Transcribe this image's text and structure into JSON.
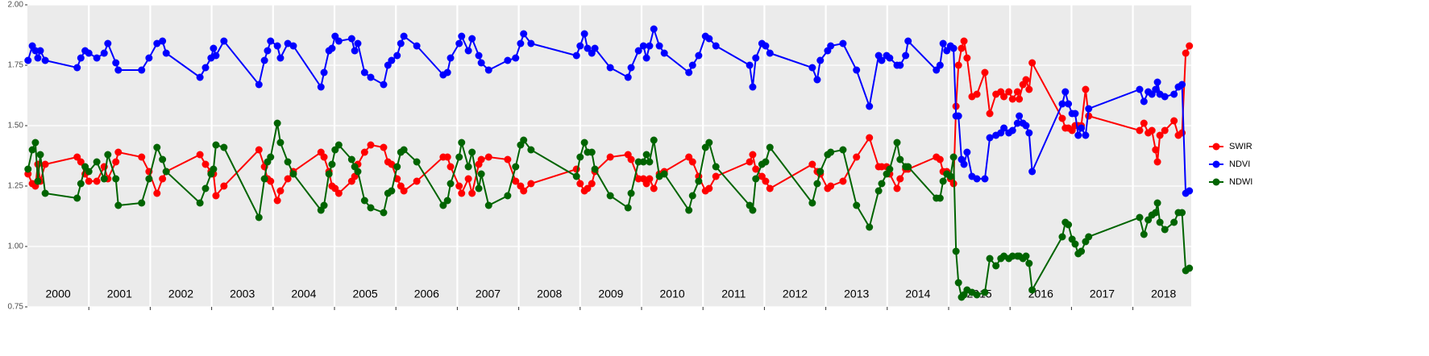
{
  "chart_data": {
    "type": "line",
    "x": [
      2000.01,
      2000.08,
      2000.13,
      2000.17,
      2000.21,
      2000.29,
      2000.81,
      2000.87,
      2000.94,
      2001.0,
      2001.13,
      2001.25,
      2001.31,
      2001.44,
      2001.48,
      2001.86,
      2001.98,
      2002.11,
      2002.2,
      2002.26,
      2002.81,
      2002.9,
      2002.99,
      2003.03,
      2003.07,
      2003.2,
      2003.77,
      2003.86,
      2003.91,
      2003.96,
      2004.07,
      2004.12,
      2004.24,
      2004.33,
      2004.78,
      2004.83,
      2004.91,
      2004.96,
      2005.01,
      2005.07,
      2005.28,
      2005.33,
      2005.38,
      2005.49,
      2005.59,
      2005.8,
      2005.87,
      2005.93,
      2006.02,
      2006.08,
      2006.13,
      2006.34,
      2006.77,
      2006.84,
      2006.89,
      2007.03,
      2007.07,
      2007.18,
      2007.24,
      2007.35,
      2007.39,
      2007.51,
      2007.82,
      2007.95,
      2008.03,
      2008.08,
      2008.2,
      2008.94,
      2009.0,
      2009.07,
      2009.12,
      2009.19,
      2009.24,
      2009.49,
      2009.78,
      2009.83,
      2009.95,
      2010.03,
      2010.08,
      2010.13,
      2010.2,
      2010.29,
      2010.37,
      2010.77,
      2010.83,
      2010.93,
      2011.04,
      2011.1,
      2011.21,
      2011.76,
      2011.81,
      2011.86,
      2011.96,
      2012.02,
      2012.09,
      2012.78,
      2012.86,
      2012.91,
      2013.03,
      2013.08,
      2013.28,
      2013.5,
      2013.71,
      2013.86,
      2013.91,
      2013.99,
      2014.04,
      2014.16,
      2014.21,
      2014.3,
      2014.34,
      2014.8,
      2014.86,
      2014.91,
      2014.97,
      2015.03,
      2015.08,
      2015.12,
      2015.16,
      2015.21,
      2015.25,
      2015.3,
      2015.38,
      2015.46,
      2015.59,
      2015.67,
      2015.77,
      2015.85,
      2015.9,
      2015.98,
      2016.04,
      2016.12,
      2016.15,
      2016.21,
      2016.26,
      2016.31,
      2016.36,
      2016.85,
      2016.9,
      2016.95,
      2017.01,
      2017.06,
      2017.11,
      2017.16,
      2017.23,
      2017.28,
      2018.11,
      2018.18,
      2018.25,
      2018.31,
      2018.37,
      2018.4,
      2018.44,
      2018.52,
      2018.67,
      2018.74,
      2018.8,
      2018.86,
      2018.92
    ],
    "series": [
      {
        "name": "SWIR",
        "color": "#ff0000",
        "values": [
          1.3,
          1.26,
          1.25,
          1.34,
          1.27,
          1.34,
          1.37,
          1.35,
          1.3,
          1.27,
          1.27,
          1.33,
          1.28,
          1.35,
          1.39,
          1.37,
          1.31,
          1.22,
          1.28,
          1.31,
          1.38,
          1.34,
          1.31,
          1.3,
          1.21,
          1.25,
          1.4,
          1.33,
          1.28,
          1.27,
          1.19,
          1.23,
          1.28,
          1.31,
          1.39,
          1.37,
          1.31,
          1.25,
          1.24,
          1.22,
          1.27,
          1.29,
          1.34,
          1.39,
          1.42,
          1.41,
          1.35,
          1.34,
          1.28,
          1.25,
          1.23,
          1.27,
          1.37,
          1.37,
          1.33,
          1.25,
          1.22,
          1.28,
          1.22,
          1.34,
          1.36,
          1.37,
          1.36,
          1.27,
          1.25,
          1.23,
          1.26,
          1.32,
          1.26,
          1.23,
          1.24,
          1.26,
          1.31,
          1.37,
          1.38,
          1.36,
          1.28,
          1.28,
          1.26,
          1.28,
          1.24,
          1.3,
          1.31,
          1.37,
          1.35,
          1.29,
          1.23,
          1.24,
          1.29,
          1.35,
          1.38,
          1.32,
          1.29,
          1.27,
          1.24,
          1.34,
          1.31,
          1.3,
          1.24,
          1.25,
          1.27,
          1.37,
          1.45,
          1.33,
          1.33,
          1.33,
          1.3,
          1.24,
          1.28,
          1.32,
          1.32,
          1.37,
          1.36,
          1.31,
          1.31,
          1.28,
          1.26,
          1.58,
          1.75,
          1.82,
          1.85,
          1.78,
          1.62,
          1.63,
          1.72,
          1.55,
          1.63,
          1.64,
          1.62,
          1.64,
          1.61,
          1.64,
          1.61,
          1.67,
          1.69,
          1.65,
          1.76,
          1.53,
          1.49,
          1.49,
          1.48,
          1.5,
          1.5,
          1.5,
          1.65,
          1.54,
          1.48,
          1.51,
          1.47,
          1.48,
          1.4,
          1.35,
          1.46,
          1.48,
          1.52,
          1.46,
          1.47,
          1.8,
          1.83
        ]
      },
      {
        "name": "NDVI",
        "color": "#0000ff",
        "values": [
          1.77,
          1.83,
          1.81,
          1.78,
          1.81,
          1.77,
          1.74,
          1.78,
          1.81,
          1.8,
          1.78,
          1.8,
          1.84,
          1.76,
          1.73,
          1.73,
          1.78,
          1.84,
          1.85,
          1.8,
          1.7,
          1.74,
          1.78,
          1.82,
          1.79,
          1.85,
          1.67,
          1.77,
          1.81,
          1.85,
          1.83,
          1.78,
          1.84,
          1.83,
          1.66,
          1.72,
          1.81,
          1.82,
          1.87,
          1.85,
          1.86,
          1.81,
          1.84,
          1.72,
          1.7,
          1.67,
          1.75,
          1.77,
          1.79,
          1.84,
          1.87,
          1.83,
          1.71,
          1.72,
          1.78,
          1.84,
          1.87,
          1.81,
          1.86,
          1.79,
          1.76,
          1.73,
          1.77,
          1.78,
          1.84,
          1.88,
          1.84,
          1.79,
          1.83,
          1.88,
          1.82,
          1.8,
          1.82,
          1.74,
          1.7,
          1.74,
          1.81,
          1.83,
          1.78,
          1.83,
          1.9,
          1.83,
          1.8,
          1.72,
          1.75,
          1.79,
          1.87,
          1.86,
          1.83,
          1.75,
          1.66,
          1.78,
          1.84,
          1.83,
          1.8,
          1.74,
          1.69,
          1.77,
          1.81,
          1.83,
          1.84,
          1.73,
          1.58,
          1.79,
          1.77,
          1.79,
          1.78,
          1.75,
          1.75,
          1.79,
          1.85,
          1.73,
          1.75,
          1.84,
          1.81,
          1.83,
          1.82,
          1.54,
          1.54,
          1.36,
          1.34,
          1.39,
          1.29,
          1.28,
          1.28,
          1.45,
          1.46,
          1.47,
          1.49,
          1.47,
          1.48,
          1.51,
          1.54,
          1.51,
          1.5,
          1.47,
          1.31,
          1.59,
          1.64,
          1.59,
          1.55,
          1.55,
          1.46,
          1.49,
          1.46,
          1.57,
          1.65,
          1.6,
          1.64,
          1.63,
          1.65,
          1.68,
          1.63,
          1.62,
          1.63,
          1.66,
          1.67,
          1.22,
          1.23
        ]
      },
      {
        "name": "NDWI",
        "color": "#006400",
        "values": [
          1.32,
          1.4,
          1.43,
          1.27,
          1.38,
          1.22,
          1.2,
          1.26,
          1.33,
          1.31,
          1.35,
          1.28,
          1.38,
          1.28,
          1.17,
          1.18,
          1.28,
          1.41,
          1.36,
          1.31,
          1.18,
          1.24,
          1.3,
          1.32,
          1.42,
          1.41,
          1.12,
          1.28,
          1.35,
          1.37,
          1.51,
          1.43,
          1.35,
          1.3,
          1.15,
          1.17,
          1.3,
          1.34,
          1.4,
          1.42,
          1.36,
          1.33,
          1.31,
          1.19,
          1.16,
          1.14,
          1.22,
          1.23,
          1.33,
          1.39,
          1.4,
          1.35,
          1.17,
          1.19,
          1.26,
          1.37,
          1.43,
          1.33,
          1.39,
          1.24,
          1.3,
          1.17,
          1.21,
          1.33,
          1.42,
          1.44,
          1.4,
          1.29,
          1.37,
          1.43,
          1.39,
          1.39,
          1.32,
          1.21,
          1.16,
          1.22,
          1.35,
          1.35,
          1.38,
          1.35,
          1.44,
          1.29,
          1.3,
          1.15,
          1.21,
          1.27,
          1.41,
          1.43,
          1.33,
          1.17,
          1.15,
          1.28,
          1.34,
          1.35,
          1.41,
          1.18,
          1.26,
          1.31,
          1.38,
          1.39,
          1.4,
          1.17,
          1.08,
          1.23,
          1.26,
          1.3,
          1.32,
          1.43,
          1.36,
          1.33,
          1.33,
          1.2,
          1.2,
          1.27,
          1.3,
          1.29,
          1.37,
          0.98,
          0.85,
          0.79,
          0.8,
          0.82,
          0.81,
          0.8,
          0.81,
          0.95,
          0.92,
          0.95,
          0.96,
          0.95,
          0.96,
          0.96,
          0.96,
          0.95,
          0.96,
          0.93,
          0.82,
          1.04,
          1.1,
          1.09,
          1.03,
          1.01,
          0.97,
          0.98,
          1.02,
          1.04,
          1.12,
          1.05,
          1.11,
          1.13,
          1.14,
          1.18,
          1.1,
          1.07,
          1.1,
          1.14,
          1.14,
          0.9,
          0.91
        ]
      }
    ],
    "xlim": [
      2000,
      2018.95
    ],
    "xgrid": [
      2001,
      2002,
      2003,
      2004,
      2005,
      2006,
      2007,
      2008,
      2009,
      2010,
      2011,
      2012,
      2013,
      2014,
      2015,
      2016,
      2017,
      2018
    ],
    "xticks": [
      {
        "value": 2000.5,
        "label": "2000"
      },
      {
        "value": 2001.5,
        "label": "2001"
      },
      {
        "value": 2002.5,
        "label": "2002"
      },
      {
        "value": 2003.5,
        "label": "2003"
      },
      {
        "value": 2004.5,
        "label": "2004"
      },
      {
        "value": 2005.5,
        "label": "2005"
      },
      {
        "value": 2006.5,
        "label": "2006"
      },
      {
        "value": 2007.5,
        "label": "2007"
      },
      {
        "value": 2008.5,
        "label": "2008"
      },
      {
        "value": 2009.5,
        "label": "2009"
      },
      {
        "value": 2010.5,
        "label": "2010"
      },
      {
        "value": 2011.5,
        "label": "2011"
      },
      {
        "value": 2012.5,
        "label": "2012"
      },
      {
        "value": 2013.5,
        "label": "2013"
      },
      {
        "value": 2014.5,
        "label": "2014"
      },
      {
        "value": 2015.5,
        "label": "2015"
      },
      {
        "value": 2016.5,
        "label": "2016"
      },
      {
        "value": 2017.5,
        "label": "2017"
      },
      {
        "value": 2018.5,
        "label": "2018"
      }
    ],
    "ylim": [
      0.75,
      2.0
    ],
    "yticks": [
      {
        "value": 0.75,
        "label": "0.75"
      },
      {
        "value": 1.0,
        "label": "1.00"
      },
      {
        "value": 1.25,
        "label": "1.25"
      },
      {
        "value": 1.5,
        "label": "1.50"
      },
      {
        "value": 1.75,
        "label": "1.75"
      },
      {
        "value": 2.0,
        "label": "2.00"
      }
    ],
    "grid": true,
    "legend": "right"
  }
}
